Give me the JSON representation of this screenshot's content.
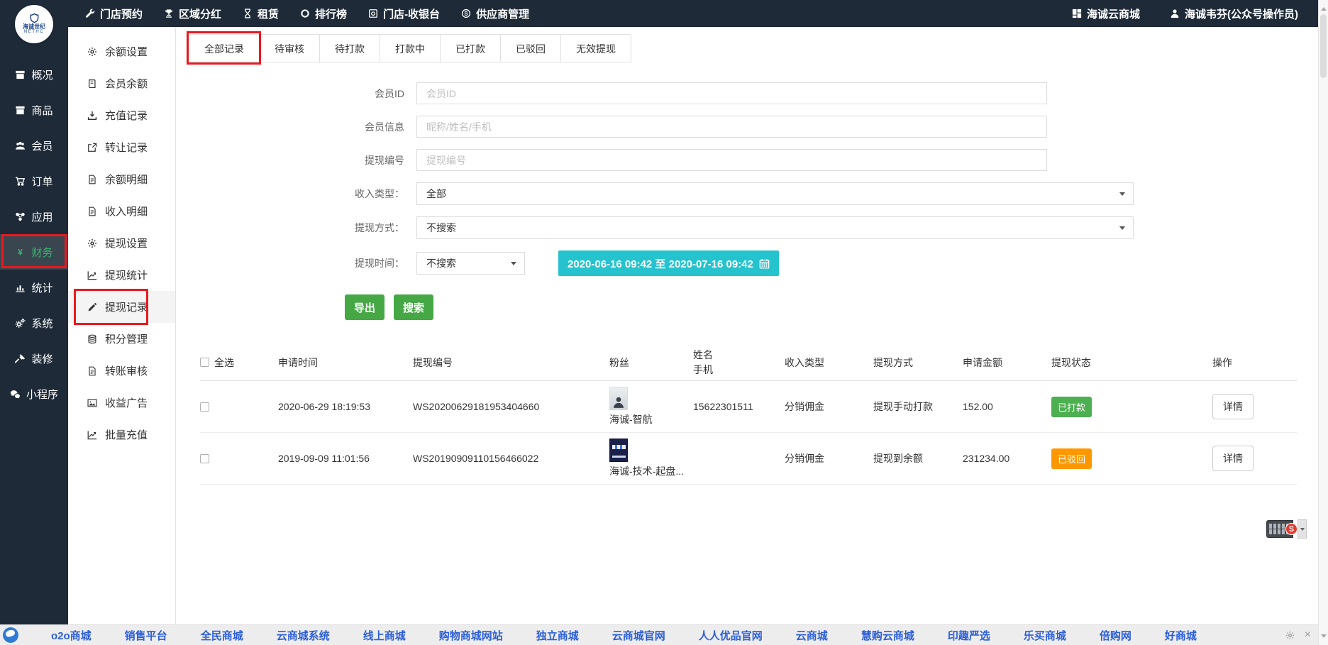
{
  "topbar": {
    "menu": [
      {
        "label": "门店预约",
        "icon": "wrench"
      },
      {
        "label": "区域分红",
        "icon": "trophy"
      },
      {
        "label": "租赁",
        "icon": "hourglass"
      },
      {
        "label": "排行榜",
        "icon": "ring"
      },
      {
        "label": "门店-收银台",
        "icon": "register"
      },
      {
        "label": "供应商管理",
        "icon": "circle-s"
      }
    ],
    "shop_name": {
      "label": "海诚云商城",
      "icon": "grid"
    },
    "operator": {
      "label": "海诚韦芬(公众号操作员)",
      "icon": "user"
    }
  },
  "logo": {
    "line1": "海诚世纪",
    "line2": "NETHC"
  },
  "sidebar": {
    "items": [
      {
        "label": "概况",
        "icon": "box"
      },
      {
        "label": "商品",
        "icon": "box"
      },
      {
        "label": "会员",
        "icon": "users"
      },
      {
        "label": "订单",
        "icon": "cart"
      },
      {
        "label": "应用",
        "icon": "nodes"
      },
      {
        "label": "财务",
        "icon": "yen",
        "active": true,
        "annotated": true
      },
      {
        "label": "统计",
        "icon": "bars"
      },
      {
        "label": "系统",
        "icon": "gears"
      },
      {
        "label": "装修",
        "icon": "hammer"
      },
      {
        "label": "小程序",
        "icon": "wechat"
      }
    ]
  },
  "submenu": {
    "items": [
      {
        "label": "余额设置",
        "icon": "gear"
      },
      {
        "label": "会员余额",
        "icon": "book"
      },
      {
        "label": "充值记录",
        "icon": "download"
      },
      {
        "label": "转让记录",
        "icon": "external"
      },
      {
        "label": "余额明细",
        "icon": "file"
      },
      {
        "label": "收入明细",
        "icon": "file"
      },
      {
        "label": "提现设置",
        "icon": "gear"
      },
      {
        "label": "提现统计",
        "icon": "chart"
      },
      {
        "label": "提现记录",
        "icon": "pencil",
        "active": true,
        "annotated": true
      },
      {
        "label": "积分管理",
        "icon": "database"
      },
      {
        "label": "转账审核",
        "icon": "file"
      },
      {
        "label": "收益广告",
        "icon": "image"
      },
      {
        "label": "批量充值",
        "icon": "chart"
      }
    ]
  },
  "tabs": [
    {
      "label": "全部记录",
      "active": true,
      "annotated": true
    },
    {
      "label": "待审核"
    },
    {
      "label": "待打款"
    },
    {
      "label": "打款中"
    },
    {
      "label": "已打款"
    },
    {
      "label": "已驳回"
    },
    {
      "label": "无效提现"
    }
  ],
  "filters": {
    "member_id": {
      "label": "会员ID",
      "placeholder": "会员ID"
    },
    "member_info": {
      "label": "会员信息",
      "placeholder": "昵称/姓名/手机"
    },
    "withdraw_no": {
      "label": "提现编号",
      "placeholder": "提现编号"
    },
    "income_type": {
      "label": "收入类型：",
      "value": "全部"
    },
    "withdraw_method": {
      "label": "提现方式：",
      "value": "不搜索"
    },
    "withdraw_time": {
      "label": "提现时间：",
      "value": "不搜索",
      "range": "2020-06-16 09:42 至 2020-07-16 09:42"
    }
  },
  "buttons": {
    "export": "导出",
    "search": "搜索"
  },
  "table": {
    "select_all": "全选",
    "headers": {
      "time": "申请时间",
      "no": "提现编号",
      "fan": "粉丝",
      "name": "姓名",
      "phone": "手机",
      "income": "收入类型",
      "method": "提现方式",
      "amount": "申请金额",
      "status": "提现状态",
      "action": "操作"
    },
    "rows": [
      {
        "time": "2020-06-29 18:19:53",
        "no": "WS20200629181953404660",
        "fan": "海诚-智航",
        "avatar": "portrait",
        "phone": "15622301511",
        "income": "分销佣金",
        "method": "提现手动打款",
        "amount": "152.00",
        "status": "已打款",
        "status_color": "#4caf50",
        "action": "详情"
      },
      {
        "time": "2019-09-09 11:01:56",
        "no": "WS20190909110156466022",
        "fan": "海诚-技术-起盘...",
        "avatar": "dark",
        "phone": "",
        "income": "分销佣金",
        "method": "提现到余额",
        "amount": "231234.00",
        "status": "已驳回",
        "status_color": "#ff9800",
        "action": "详情"
      }
    ]
  },
  "footer": {
    "links": [
      "o2o商城",
      "销售平台",
      "全民商城",
      "云商城系统",
      "线上商城",
      "购物商城网站",
      "独立商城",
      "云商城官网",
      "人人优品官网",
      "云商城",
      "慧购云商城",
      "印趣严选",
      "乐买商城",
      "倍购网",
      "好商城"
    ]
  },
  "widget": {
    "label": "S"
  },
  "colors": {
    "navbar_bg": "#1e2a38",
    "active_green": "#3eb370",
    "teal": "#25c3ce",
    "green": "#45a845",
    "badge_green": "#4caf50",
    "badge_orange": "#ff9800",
    "link_blue": "#2b5ed8",
    "annotation_red": "#e8191f"
  }
}
